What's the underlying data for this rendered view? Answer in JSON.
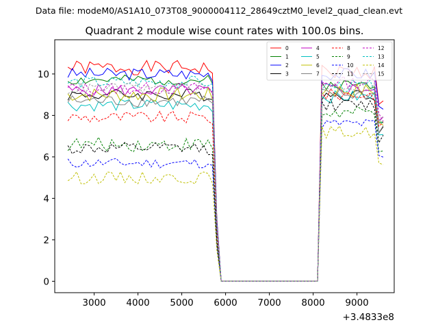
{
  "chart_data": {
    "type": "line",
    "suptitle": "Data file: modeM0/AS1A10_073T08_9000004112_28649cztM0_level2_quad_clean.evt",
    "title": "Quadrant 2 module wise count rates with 100.0s bins.",
    "xlabel": "",
    "ylabel": "",
    "x_offset_label": "+3.4833e8",
    "xlim": [
      2100,
      9850
    ],
    "ylim": [
      -0.55,
      11.65
    ],
    "x_ticks": [
      3000,
      4000,
      5000,
      6000,
      7000,
      8000,
      9000
    ],
    "x_tick_labels": [
      "3000",
      "4000",
      "5000",
      "6000",
      "7000",
      "8000",
      "9000"
    ],
    "y_ticks": [
      0,
      2,
      4,
      6,
      8,
      10
    ],
    "y_tick_labels": [
      "0",
      "2",
      "4",
      "6",
      "8",
      "10"
    ],
    "grid": false,
    "legend_position": "top-right",
    "x_start": 2400,
    "x_step": 100,
    "x_end": 9600,
    "gap": {
      "drop_start": 5700,
      "zero_from": 5900,
      "zero_to": 8100,
      "rise_end": 8300
    },
    "series": [
      {
        "name": "0",
        "color": "#ff0000",
        "dashed": false,
        "level": 10.3,
        "post_level": 10.1,
        "amplitude": 0.35,
        "seed": 1
      },
      {
        "name": "1",
        "color": "#008000",
        "dashed": false,
        "level": 9.7,
        "post_level": 9.5,
        "amplitude": 0.25,
        "seed": 2
      },
      {
        "name": "2",
        "color": "#0000ff",
        "dashed": false,
        "level": 10.0,
        "post_level": 10.0,
        "amplitude": 0.3,
        "seed": 3
      },
      {
        "name": "3",
        "color": "#000000",
        "dashed": false,
        "level": 9.0,
        "post_level": 9.0,
        "amplitude": 0.3,
        "seed": 4
      },
      {
        "name": "4",
        "color": "#c000c0",
        "dashed": false,
        "level": 9.2,
        "post_level": 9.3,
        "amplitude": 0.3,
        "seed": 5
      },
      {
        "name": "5",
        "color": "#00bfbf",
        "dashed": false,
        "level": 8.5,
        "post_level": 8.9,
        "amplitude": 0.3,
        "seed": 6
      },
      {
        "name": "6",
        "color": "#bfbf00",
        "dashed": false,
        "level": 9.0,
        "post_level": 9.2,
        "amplitude": 0.35,
        "seed": 7
      },
      {
        "name": "7",
        "color": "#808080",
        "dashed": false,
        "level": 8.7,
        "post_level": 9.0,
        "amplitude": 0.3,
        "seed": 8
      },
      {
        "name": "8",
        "color": "#ff0000",
        "dashed": true,
        "level": 7.9,
        "post_level": 9.0,
        "amplitude": 0.3,
        "seed": 9
      },
      {
        "name": "9",
        "color": "#008000",
        "dashed": true,
        "level": 6.6,
        "post_level": 8.1,
        "amplitude": 0.35,
        "seed": 10
      },
      {
        "name": "10",
        "color": "#0000ff",
        "dashed": true,
        "level": 5.7,
        "post_level": 7.6,
        "amplitude": 0.25,
        "seed": 11
      },
      {
        "name": "11",
        "color": "#000000",
        "dashed": true,
        "level": 6.4,
        "post_level": 8.5,
        "amplitude": 0.3,
        "seed": 12
      },
      {
        "name": "12",
        "color": "#c000c0",
        "dashed": true,
        "level": 9.3,
        "post_level": 9.6,
        "amplitude": 0.3,
        "seed": 13
      },
      {
        "name": "13",
        "color": "#00bfbf",
        "dashed": true,
        "level": 9.6,
        "post_level": 9.4,
        "amplitude": 0.3,
        "seed": 14
      },
      {
        "name": "14",
        "color": "#bfbf00",
        "dashed": true,
        "level": 5.0,
        "post_level": 7.2,
        "amplitude": 0.3,
        "seed": 15
      },
      {
        "name": "15",
        "color": "#a0a0a0",
        "dashed": true,
        "level": 9.3,
        "post_level": 9.4,
        "amplitude": 0.3,
        "seed": 16
      }
    ]
  }
}
